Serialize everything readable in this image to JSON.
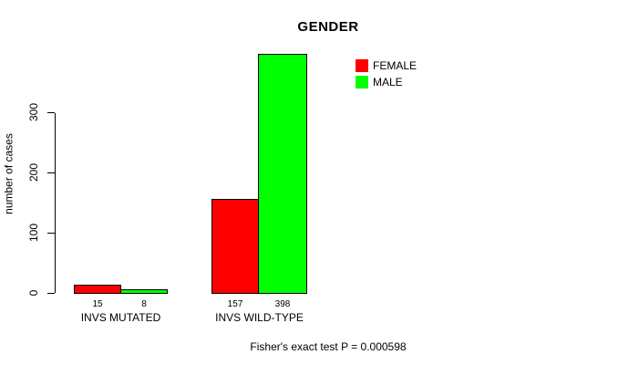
{
  "chart_data": {
    "type": "bar",
    "title": "GENDER",
    "ylabel": "number of cases",
    "xlabel": "",
    "ylim": [
      0,
      410
    ],
    "yticks": [
      0,
      100,
      200,
      300
    ],
    "grid": false,
    "legend_position": "top-right",
    "categories": [
      "INVS MUTATED",
      "INVS WILD-TYPE"
    ],
    "series": [
      {
        "name": "FEMALE",
        "color": "#ff0000",
        "values": [
          15,
          157
        ]
      },
      {
        "name": "MALE",
        "color": "#00ff00",
        "values": [
          8,
          398
        ]
      }
    ],
    "bar_value_labels": [
      [
        "15",
        "8"
      ],
      [
        "157",
        "398"
      ]
    ],
    "annotation": "Fisher's exact test P = 0.000598"
  }
}
